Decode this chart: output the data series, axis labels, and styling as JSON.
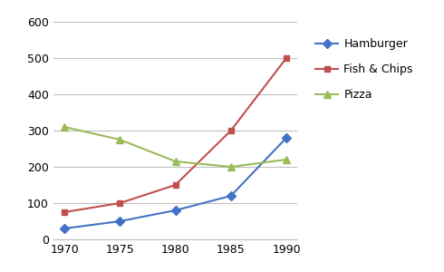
{
  "years": [
    1970,
    1975,
    1980,
    1985,
    1990
  ],
  "hamburger": [
    30,
    50,
    80,
    120,
    280
  ],
  "fish_chips": [
    75,
    100,
    150,
    300,
    500
  ],
  "pizza": [
    310,
    275,
    215,
    200,
    220
  ],
  "hamburger_color": "#4472c4",
  "fish_chips_color": "#c0504d",
  "pizza_color": "#9bbb59",
  "hamburger_label": "Hamburger",
  "fish_chips_label": "Fish & Chips",
  "pizza_label": "Pizza",
  "ylim": [
    0,
    600
  ],
  "yticks": [
    0,
    100,
    200,
    300,
    400,
    500,
    600
  ],
  "background_color": "#ffffff",
  "grid_color": "#bfbfbf"
}
